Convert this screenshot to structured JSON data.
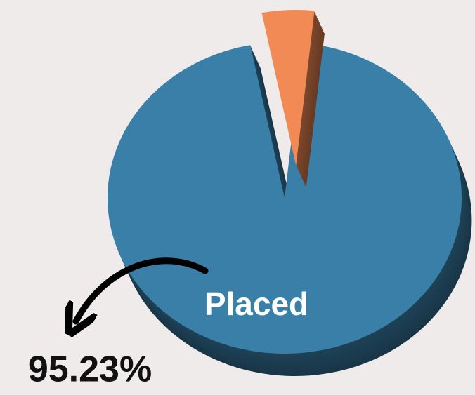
{
  "chart_data": {
    "type": "pie",
    "categories": [
      "Placed",
      null
    ],
    "values": [
      95.23,
      4.77
    ],
    "value_labels": [
      "95.23%",
      null
    ],
    "colors": [
      "#3a7fa8",
      "#f28a55"
    ],
    "explode": [
      false,
      true
    ]
  }
}
